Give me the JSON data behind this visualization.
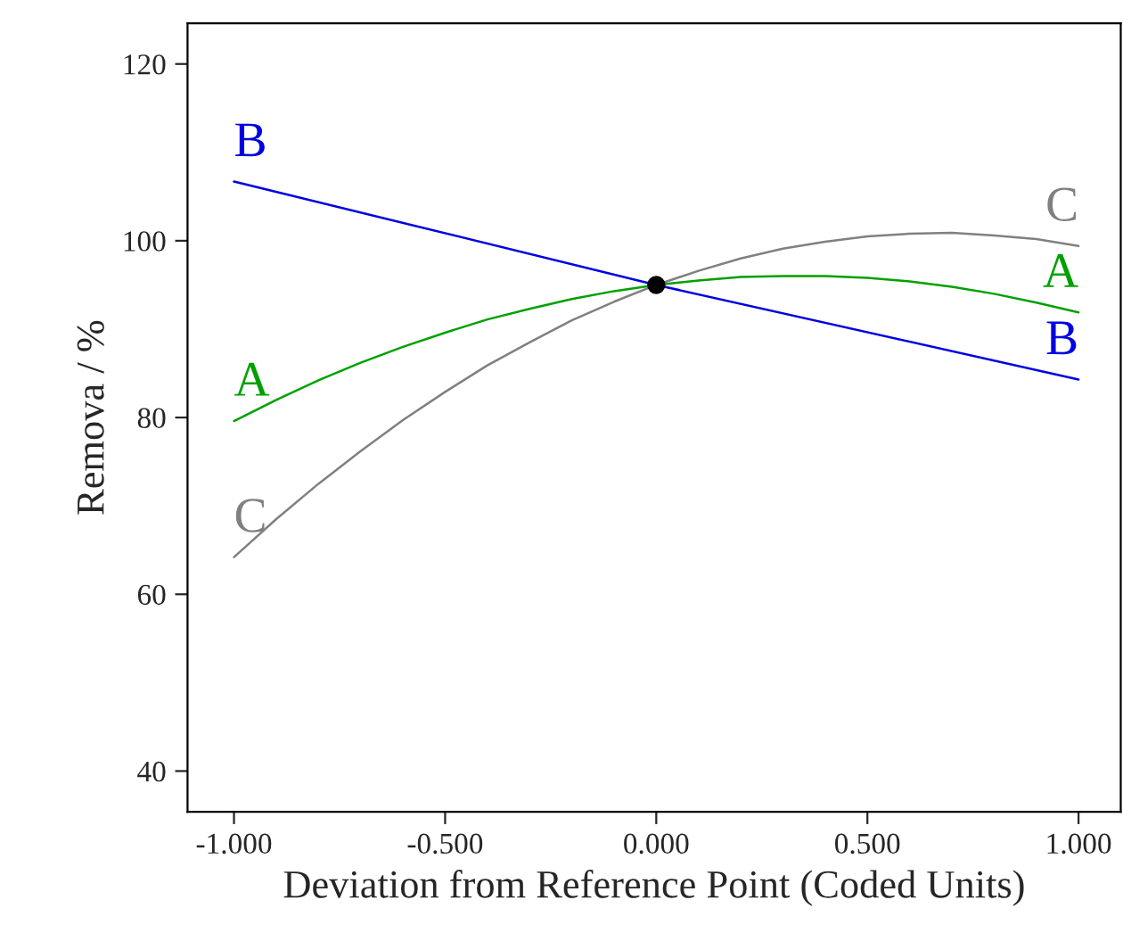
{
  "chart_data": {
    "type": "line",
    "xlabel": "Deviation from Reference Point (Coded Units)",
    "ylabel": "Remova / %",
    "xlim": [
      -1.11,
      1.1
    ],
    "ylim": [
      35.4,
      124.6
    ],
    "xticks": [
      {
        "value": -1,
        "label": "-1.000"
      },
      {
        "value": -0.5,
        "label": "-0.500"
      },
      {
        "value": 0,
        "label": "0.000"
      },
      {
        "value": 0.5,
        "label": "0.500"
      },
      {
        "value": 1,
        "label": "1.000"
      }
    ],
    "yticks": [
      40,
      60,
      80,
      100,
      120
    ],
    "grid": false,
    "legend": false,
    "marker": "none",
    "line_style": "solid",
    "series": [
      {
        "name": "A",
        "color": "#00a000",
        "x": [
          -1,
          -0.9,
          -0.8,
          -0.7,
          -0.6,
          -0.5,
          -0.4,
          -0.3,
          -0.2,
          -0.1,
          0,
          0.1,
          0.2,
          0.3,
          0.4,
          0.5,
          0.6,
          0.7,
          0.8,
          0.9,
          1
        ],
        "values": [
          79.6,
          82.0,
          84.2,
          86.2,
          88.0,
          89.6,
          91.1,
          92.3,
          93.4,
          94.3,
          95,
          95.5,
          95.9,
          96.0,
          96.0,
          95.8,
          95.4,
          94.8,
          94.0,
          93.0,
          91.9
        ]
      },
      {
        "name": "B",
        "color": "#0000e0",
        "x": [
          -1,
          0,
          1
        ],
        "values": [
          106.7,
          95,
          84.3
        ]
      },
      {
        "name": "C",
        "color": "#808080",
        "x": [
          -1,
          -0.9,
          -0.8,
          -0.7,
          -0.6,
          -0.5,
          -0.4,
          -0.3,
          -0.2,
          -0.1,
          0,
          0.1,
          0.2,
          0.3,
          0.4,
          0.5,
          0.6,
          0.7,
          0.8,
          0.9,
          1
        ],
        "values": [
          64.2,
          68.5,
          72.5,
          76.2,
          79.7,
          82.9,
          85.9,
          88.5,
          91.0,
          93.1,
          95,
          96.6,
          98.0,
          99.1,
          99.9,
          100.5,
          100.8,
          100.9,
          100.6,
          100.2,
          99.4
        ]
      },
      {
        "type": "scatter",
        "color": "#000000",
        "marker": "circle",
        "x": [
          0
        ],
        "values": [
          95
        ]
      }
    ]
  }
}
